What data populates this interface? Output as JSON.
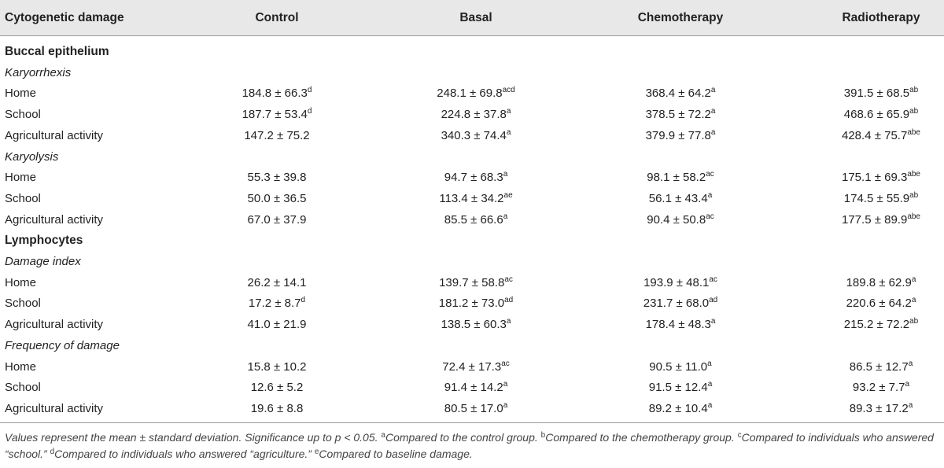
{
  "headers": [
    "Cytogenetic damage",
    "Control",
    "Basal",
    "Chemotherapy",
    "Radiotherapy"
  ],
  "rows": [
    {
      "kind": "section",
      "label": "Buccal epithelium"
    },
    {
      "kind": "sub",
      "label": "Karyorrhexis"
    },
    {
      "kind": "data",
      "label": "Home",
      "cells": [
        [
          "184.8 ± 66.3",
          "d"
        ],
        [
          "248.1 ± 69.8",
          "acd"
        ],
        [
          "368.4 ± 64.2",
          "a"
        ],
        [
          "391.5 ± 68.5",
          "ab"
        ]
      ]
    },
    {
      "kind": "data",
      "label": "School",
      "cells": [
        [
          "187.7 ± 53.4",
          "d"
        ],
        [
          "224.8 ± 37.8",
          "a"
        ],
        [
          "378.5 ± 72.2",
          "a"
        ],
        [
          "468.6 ± 65.9",
          "ab"
        ]
      ]
    },
    {
      "kind": "data",
      "label": "Agricultural activity",
      "cells": [
        [
          "147.2 ± 75.2",
          ""
        ],
        [
          "340.3 ± 74.4",
          "a"
        ],
        [
          "379.9 ± 77.8",
          "a"
        ],
        [
          "428.4 ± 75.7",
          "abe"
        ]
      ]
    },
    {
      "kind": "sub",
      "label": "Karyolysis"
    },
    {
      "kind": "data",
      "label": "Home",
      "cells": [
        [
          "55.3 ± 39.8",
          ""
        ],
        [
          "94.7 ± 68.3",
          "a"
        ],
        [
          "98.1 ± 58.2",
          "ac"
        ],
        [
          "175.1 ± 69.3",
          "abe"
        ]
      ]
    },
    {
      "kind": "data",
      "label": "School",
      "cells": [
        [
          "50.0 ± 36.5",
          ""
        ],
        [
          "113.4 ± 34.2",
          "ae"
        ],
        [
          "56.1 ± 43.4",
          "a"
        ],
        [
          "174.5 ± 55.9",
          "ab"
        ]
      ]
    },
    {
      "kind": "data",
      "label": "Agricultural activity",
      "cells": [
        [
          "67.0 ± 37.9",
          ""
        ],
        [
          "85.5 ± 66.6",
          "a"
        ],
        [
          "90.4 ± 50.8",
          "ac"
        ],
        [
          "177.5 ± 89.9",
          "abe"
        ]
      ]
    },
    {
      "kind": "section",
      "label": "Lymphocytes"
    },
    {
      "kind": "sub",
      "label": "Damage index"
    },
    {
      "kind": "data",
      "label": "Home",
      "cells": [
        [
          "26.2 ± 14.1",
          ""
        ],
        [
          "139.7 ± 58.8",
          "ac"
        ],
        [
          "193.9 ± 48.1",
          "ac"
        ],
        [
          "189.8 ± 62.9",
          "a"
        ]
      ]
    },
    {
      "kind": "data",
      "label": "School",
      "cells": [
        [
          "17.2 ± 8.7",
          "d"
        ],
        [
          "181.2 ± 73.0",
          "ad"
        ],
        [
          "231.7 ± 68.0",
          "ad"
        ],
        [
          "220.6 ± 64.2",
          "a"
        ]
      ]
    },
    {
      "kind": "data",
      "label": "Agricultural activity",
      "cells": [
        [
          "41.0 ± 21.9",
          ""
        ],
        [
          "138.5 ± 60.3",
          "a"
        ],
        [
          "178.4 ± 48.3",
          "a"
        ],
        [
          "215.2 ± 72.2",
          "ab"
        ]
      ]
    },
    {
      "kind": "sub",
      "label": "Frequency of damage"
    },
    {
      "kind": "data",
      "label": "Home",
      "cells": [
        [
          "15.8 ± 10.2",
          ""
        ],
        [
          "72.4 ± 17.3",
          "ac"
        ],
        [
          "90.5 ± 11.0",
          "a"
        ],
        [
          "86.5 ± 12.7",
          "a"
        ]
      ]
    },
    {
      "kind": "data",
      "label": "School",
      "cells": [
        [
          "12.6 ± 5.2",
          ""
        ],
        [
          "91.4 ± 14.2",
          "a"
        ],
        [
          "91.5 ± 12.4",
          "a"
        ],
        [
          "93.2 ± 7.7",
          "a"
        ]
      ]
    },
    {
      "kind": "data",
      "label": "Agricultural activity",
      "cells": [
        [
          "19.6 ± 8.8",
          ""
        ],
        [
          "80.5 ± 17.0",
          "a"
        ],
        [
          "89.2 ± 10.4",
          "a"
        ],
        [
          "89.3 ± 17.2",
          "a"
        ]
      ]
    }
  ],
  "footnote": {
    "lead": "Values represent the mean ± standard deviation. Significance up to p < 0.05.",
    "notes": [
      {
        "mark": "a",
        "text": "Compared to the control group."
      },
      {
        "mark": "b",
        "text": "Compared to the chemotherapy group."
      },
      {
        "mark": "c",
        "text": "Compared to individuals who answered “school.”"
      },
      {
        "mark": "d",
        "text": "Compared to individuals who answered “agriculture.”"
      },
      {
        "mark": "e",
        "text": "Compared to baseline damage."
      }
    ]
  }
}
